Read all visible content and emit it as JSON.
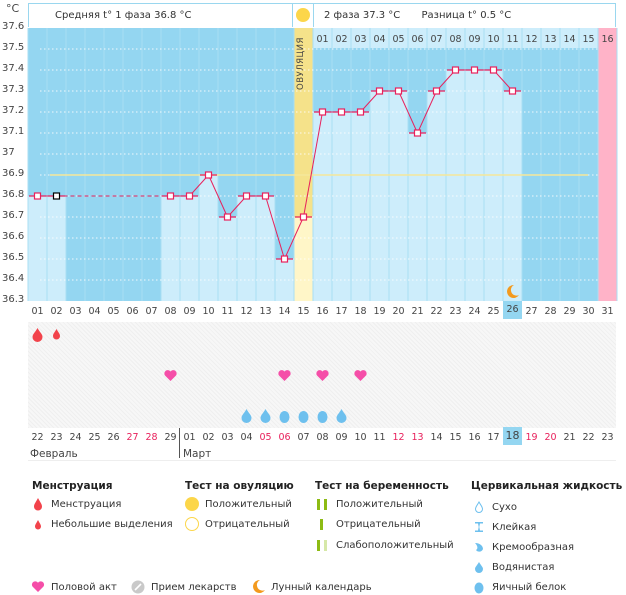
{
  "header": {
    "unit": "°C",
    "phase1_label": "Средняя t° 1 фаза 36.8 °C",
    "phase2_label": "2 фаза 37.3 °C",
    "difference_label": "Разница t° 0.5 °C",
    "ovulation_label": "ОВУЛЯЦИЯ"
  },
  "colors": {
    "background_blue": "#94d6f1",
    "column_light": "#cdedfb",
    "ovulation_yellow": "#fff6c8",
    "menstruation_pink": "#ffb3c8",
    "line_red": "#e8215c",
    "coverline_yellow": "#f5e79a",
    "heart_pink": "#f54ea8",
    "drop_blue": "#6ec0ee",
    "blood_red": "#f2434b",
    "moon_orange": "#f39a1e"
  },
  "chart_data": {
    "type": "line",
    "title": "",
    "xlabel": "",
    "ylabel": "°C",
    "ylim": [
      36.3,
      37.6
    ],
    "yticks": [
      "37.6",
      "37.5",
      "37.4",
      "37.3",
      "37.2",
      "37.1",
      "37",
      "36.9",
      "36.8",
      "36.7",
      "36.6",
      "36.5",
      "36.4",
      "36.3"
    ],
    "x": [
      "01",
      "02",
      "03",
      "04",
      "05",
      "06",
      "07",
      "08",
      "09",
      "10",
      "11",
      "12",
      "13",
      "14",
      "15",
      "16",
      "17",
      "18",
      "19",
      "20",
      "21",
      "22",
      "23",
      "24",
      "25",
      "26",
      "27",
      "28",
      "29",
      "30",
      "31"
    ],
    "series": [
      {
        "name": "Базальная температура",
        "values": [
          36.8,
          36.8,
          null,
          null,
          null,
          null,
          null,
          36.8,
          36.8,
          36.9,
          36.7,
          36.8,
          36.8,
          36.5,
          36.7,
          37.2,
          37.2,
          37.2,
          37.3,
          37.3,
          37.1,
          37.3,
          37.4,
          37.4,
          37.4,
          37.3,
          null,
          null,
          null,
          null,
          null
        ]
      }
    ],
    "coverline": 36.9,
    "ovulation_day": 15,
    "today_cycle_day": 26,
    "next_period_day": 31,
    "phase2_day_labels": [
      "01",
      "02",
      "03",
      "04",
      "05",
      "06",
      "07",
      "08",
      "09",
      "10",
      "11",
      "12",
      "13",
      "14",
      "15",
      "16"
    ],
    "grid": true
  },
  "calendar": {
    "dates": [
      {
        "d": "22",
        "red": false
      },
      {
        "d": "23",
        "red": false
      },
      {
        "d": "24",
        "red": false
      },
      {
        "d": "25",
        "red": false
      },
      {
        "d": "26",
        "red": false
      },
      {
        "d": "27",
        "red": true
      },
      {
        "d": "28",
        "red": true
      },
      {
        "d": "29",
        "red": false
      },
      {
        "d": "01",
        "red": false
      },
      {
        "d": "02",
        "red": false
      },
      {
        "d": "03",
        "red": false
      },
      {
        "d": "04",
        "red": false
      },
      {
        "d": "05",
        "red": true
      },
      {
        "d": "06",
        "red": true
      },
      {
        "d": "07",
        "red": false
      },
      {
        "d": "08",
        "red": false
      },
      {
        "d": "09",
        "red": false
      },
      {
        "d": "10",
        "red": false
      },
      {
        "d": "11",
        "red": false
      },
      {
        "d": "12",
        "red": true
      },
      {
        "d": "13",
        "red": true
      },
      {
        "d": "14",
        "red": false
      },
      {
        "d": "15",
        "red": false
      },
      {
        "d": "16",
        "red": false
      },
      {
        "d": "17",
        "red": false
      },
      {
        "d": "18",
        "red": false
      },
      {
        "d": "19",
        "red": true
      },
      {
        "d": "20",
        "red": true
      },
      {
        "d": "21",
        "red": false
      },
      {
        "d": "22",
        "red": false
      },
      {
        "d": "23",
        "red": false
      }
    ],
    "month1": "Февраль",
    "month2": "Март",
    "menstruation_days": [
      {
        "day": 1,
        "type": "full"
      },
      {
        "day": 2,
        "type": "spotting"
      }
    ],
    "intercourse_days": [
      8,
      14,
      16,
      18
    ],
    "cervical_fluid": [
      {
        "day": 12,
        "type": "watery"
      },
      {
        "day": 13,
        "type": "watery"
      },
      {
        "day": 14,
        "type": "eggwhite"
      },
      {
        "day": 15,
        "type": "eggwhite"
      },
      {
        "day": 16,
        "type": "eggwhite"
      },
      {
        "day": 17,
        "type": "watery"
      }
    ],
    "moon_day": 26
  },
  "legend": {
    "menstruation": {
      "title": "Менструация",
      "items": [
        "Менструация",
        "Небольшие выделения"
      ]
    },
    "ovulation_test": {
      "title": "Тест на овуляцию",
      "items": [
        "Положительный",
        "Отрицательный"
      ]
    },
    "pregnancy_test": {
      "title": "Тест на беременность",
      "items": [
        "Положительный",
        "Отрицательный",
        "Слабоположительный"
      ]
    },
    "cervical_fluid": {
      "title": "Цервикальная жидкость",
      "items": [
        "Сухо",
        "Клейкая",
        "Кремообразная",
        "Водянистая",
        "Яичный белок"
      ]
    },
    "bottom": [
      "Половой акт",
      "Прием лекарств",
      "Лунный календарь"
    ]
  }
}
